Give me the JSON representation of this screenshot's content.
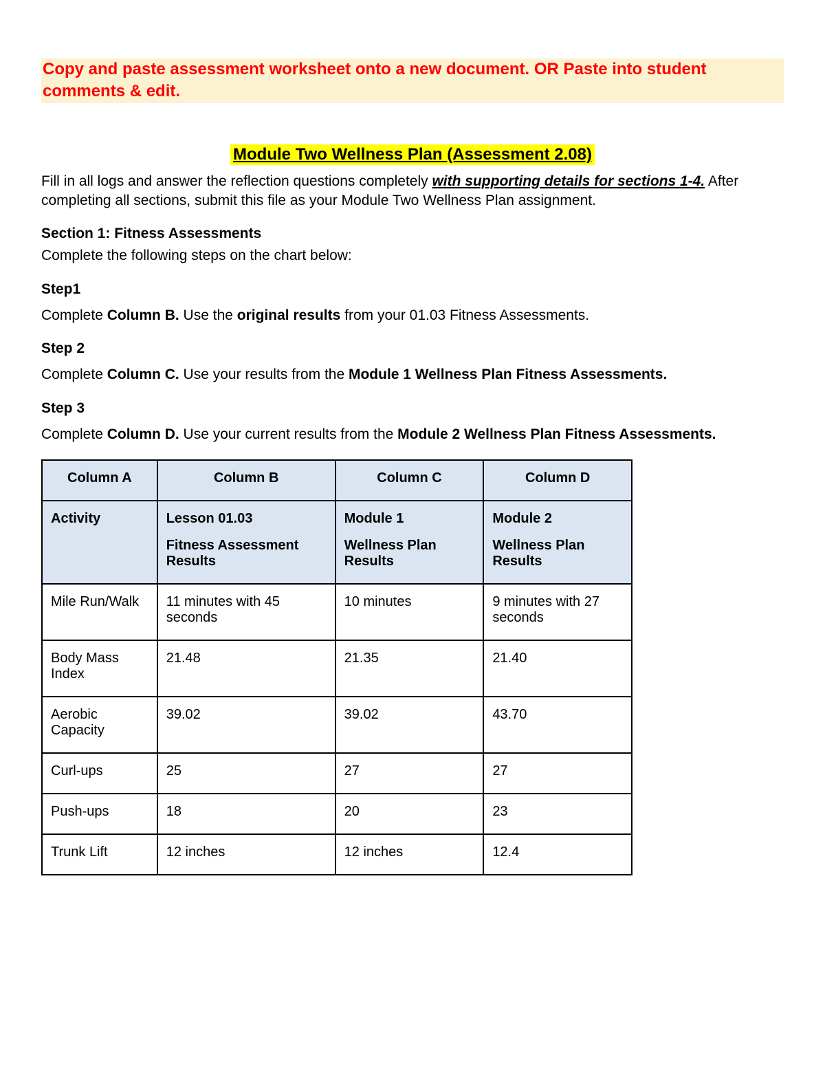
{
  "banner": "Copy and paste assessment worksheet onto a new document. OR Paste into student comments & edit.",
  "title": "Module Two Wellness Plan (Assessment 2.08)",
  "intro": {
    "pre": "Fill in all logs and answer the reflection questions completely ",
    "emph": "with supporting details for sections 1-4.",
    "post": " After completing all sections, submit this file as your Module Two Wellness Plan assignment."
  },
  "section1": {
    "heading": "Section 1: Fitness Assessments",
    "lead": "Complete the following steps on the chart below:"
  },
  "steps": {
    "s1": {
      "label": "Step1",
      "t1": "Complete ",
      "b1": "Column B.",
      "t2": " Use the ",
      "b2": "original results",
      "t3": " from your 01.03 Fitness Assessments."
    },
    "s2": {
      "label": "Step 2",
      "t1": "Complete ",
      "b1": "Column C.",
      "t2": " Use your results from the ",
      "b2": "Module 1 Wellness Plan Fitness Assessments."
    },
    "s3": {
      "label": "Step 3",
      "t1": "Complete ",
      "b1": "Column D.",
      "t2": " Use your current results from the ",
      "b2": "Module 2 Wellness Plan Fitness Assessments."
    }
  },
  "table": {
    "headers": [
      "Column A",
      "Column B",
      "Column C",
      "Column D"
    ],
    "subheaders": {
      "a": "Activity",
      "b1": "Lesson 01.03",
      "b2": "Fitness Assessment Results",
      "c1": "Module 1",
      "c2": "Wellness Plan Results",
      "d1": "Module 2",
      "d2": "Wellness Plan Results"
    },
    "rows": [
      [
        "Mile Run/Walk",
        "11 minutes with 45 seconds",
        "10 minutes",
        "9 minutes with 27 seconds"
      ],
      [
        "Body Mass Index",
        "21.48",
        "21.35",
        "21.40"
      ],
      [
        "Aerobic Capacity",
        "39.02",
        "39.02",
        "43.70"
      ],
      [
        "Curl-ups",
        "25",
        "27",
        "27"
      ],
      [
        "Push-ups",
        "18",
        "20",
        "23"
      ],
      [
        "Trunk Lift",
        "12 inches",
        "12 inches",
        "12.4"
      ]
    ],
    "colors": {
      "header_bg": "#dbe5f1",
      "border": "#000000",
      "page_bg": "#ffffff",
      "banner_bg": "#fdf2d0",
      "banner_text": "#ff0000",
      "title_bg": "#ffff00"
    }
  }
}
